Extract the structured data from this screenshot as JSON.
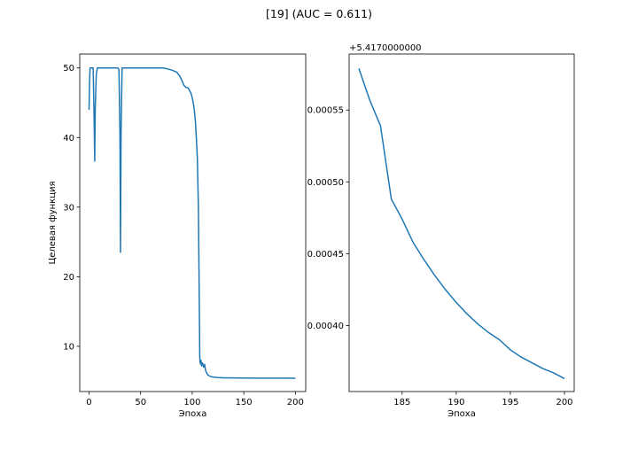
{
  "figure": {
    "suptitle": "[19] (AUC = 0.611)"
  },
  "chart_data": [
    {
      "type": "line",
      "xlabel": "Эпоха",
      "ylabel": "Целевая функция",
      "xlim": [
        -9,
        210
      ],
      "ylim": [
        3.5,
        52
      ],
      "xticks": [
        0,
        50,
        100,
        150,
        200
      ],
      "yticks": [
        10,
        20,
        30,
        40,
        50
      ],
      "grid": false,
      "series": [
        {
          "color": "#1f77b4",
          "x": [
            0,
            0.5,
            1,
            2,
            3,
            4,
            5,
            5.5,
            6,
            7,
            8,
            10,
            15,
            20,
            25,
            28,
            29,
            30,
            30.5,
            31,
            32,
            35,
            40,
            50,
            60,
            70,
            72,
            75,
            80,
            85,
            88,
            90,
            92,
            94,
            95,
            96,
            97,
            98,
            99,
            100,
            101,
            102,
            103,
            104,
            105,
            106,
            106.5,
            107,
            107.3,
            107.6,
            108,
            108.5,
            109,
            110,
            111,
            112,
            113,
            114,
            115,
            116,
            118,
            120,
            125,
            130,
            140,
            150,
            160,
            170,
            180,
            190,
            200
          ],
          "y": [
            44,
            48,
            50,
            50,
            50,
            50,
            42,
            36.6,
            44,
            49,
            50,
            50,
            50,
            50,
            50,
            50,
            49.8,
            40,
            23.5,
            40,
            50,
            50,
            50,
            50,
            50,
            50,
            50,
            49.9,
            49.7,
            49.4,
            48.8,
            48.2,
            47.5,
            47.2,
            47.2,
            47.1,
            46.9,
            46.6,
            46.3,
            45.7,
            45,
            44,
            42.5,
            40,
            37,
            30,
            22,
            14,
            8.5,
            7.7,
            7.5,
            8,
            7.2,
            7.6,
            7,
            7.4,
            6.5,
            6.2,
            5.9,
            5.8,
            5.65,
            5.58,
            5.5,
            5.47,
            5.45,
            5.44,
            5.43,
            5.42,
            5.42,
            5.42,
            5.4175
          ]
        }
      ]
    },
    {
      "type": "line",
      "xlabel": "Эпоха",
      "ylabel": "",
      "offset_label": "+5.4170000000",
      "xlim": [
        180.1,
        200.9
      ],
      "ylim": [
        0.000354,
        0.000589
      ],
      "xticks": [
        185,
        190,
        195,
        200
      ],
      "ytick_labels": [
        "0.00040",
        "0.00045",
        "0.00050",
        "0.00055"
      ],
      "yticks": [
        0.0004,
        0.00045,
        0.0005,
        0.00055
      ],
      "grid": false,
      "series": [
        {
          "color": "#1f77b4",
          "x": [
            181,
            182,
            183,
            184,
            185,
            186,
            187,
            188,
            189,
            190,
            191,
            192,
            193,
            194,
            195,
            196,
            197,
            198,
            199,
            200
          ],
          "y": [
            0.000579,
            0.000557,
            0.000539,
            0.000488,
            0.000474,
            0.000458,
            0.000446,
            0.000435,
            0.000425,
            0.000416,
            0.000408,
            0.000401,
            0.000395,
            0.00039,
            0.000383,
            0.000378,
            0.000374,
            0.00037,
            0.000367,
            0.000363
          ]
        }
      ]
    }
  ]
}
